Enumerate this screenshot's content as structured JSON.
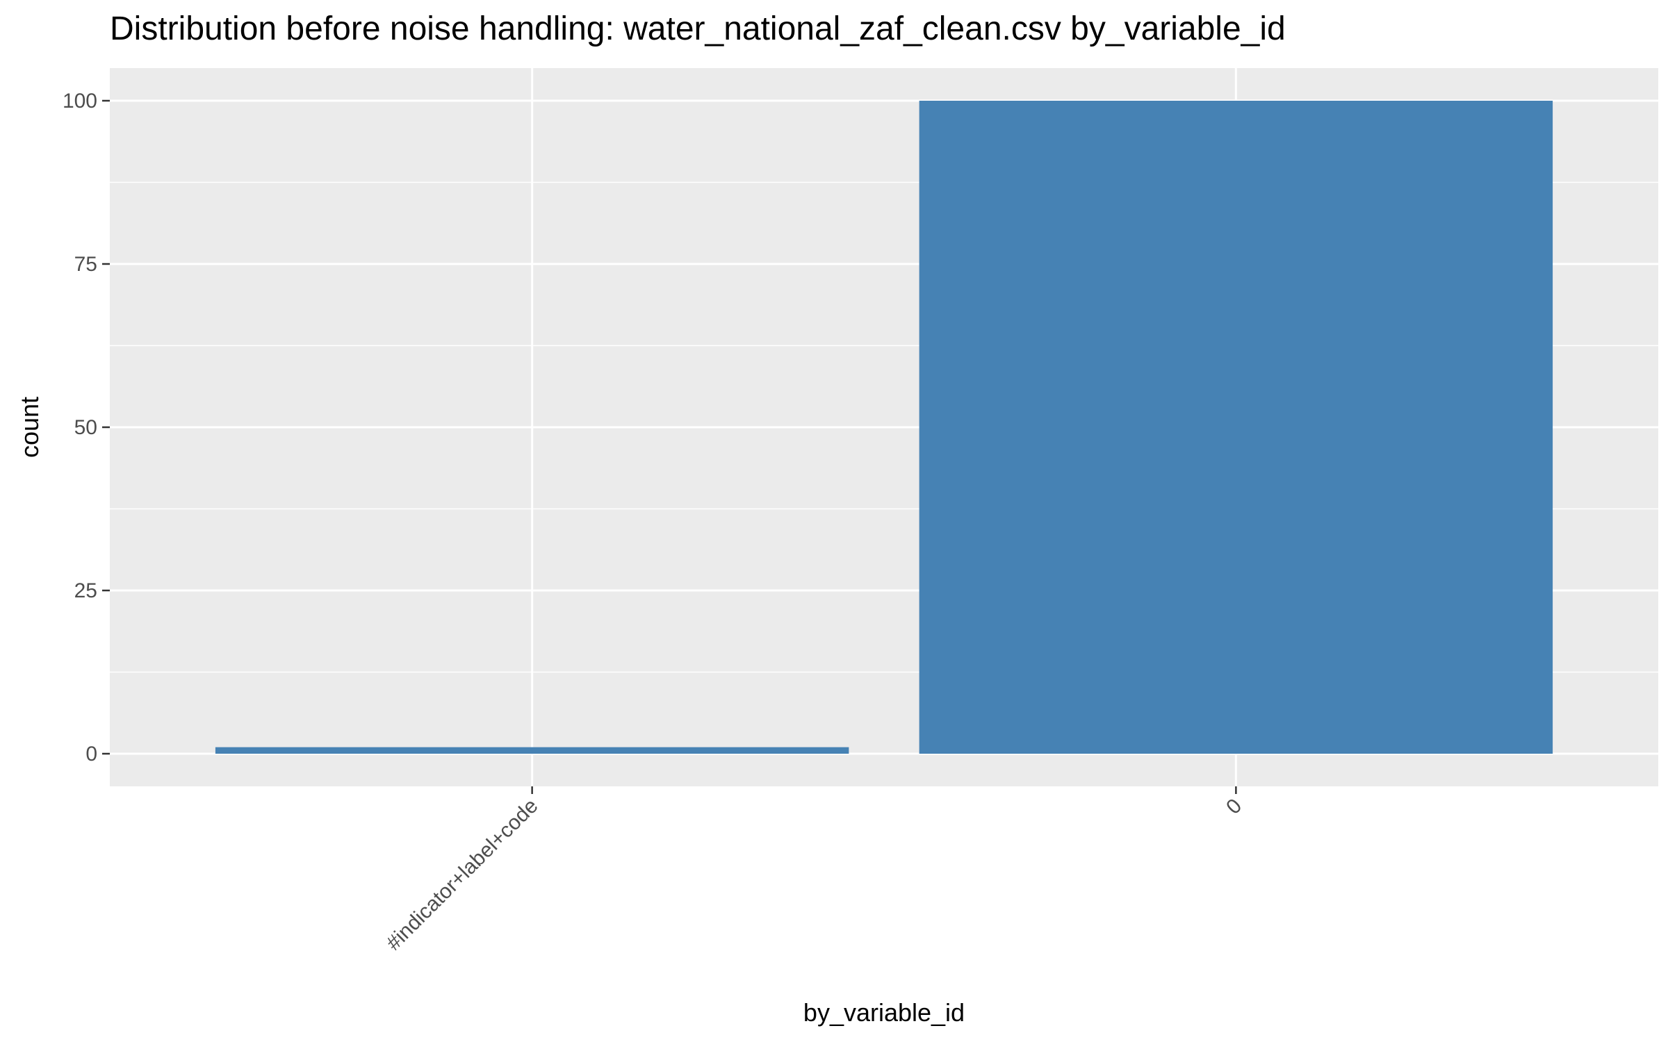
{
  "chart_data": {
    "type": "bar",
    "title": "Distribution before noise handling: water_national_zaf_clean.csv by_variable_id",
    "xlabel": "by_variable_id",
    "ylabel": "count",
    "categories": [
      "#indicator+label+code",
      "0"
    ],
    "values": [
      1,
      100
    ],
    "ylim": [
      -5,
      105
    ],
    "yticks": [
      0,
      25,
      50,
      75,
      100
    ],
    "grid": true,
    "legend": "none",
    "bar_color": "#4682B4",
    "panel_color": "#EBEBEB",
    "grid_color": "#FFFFFF"
  }
}
